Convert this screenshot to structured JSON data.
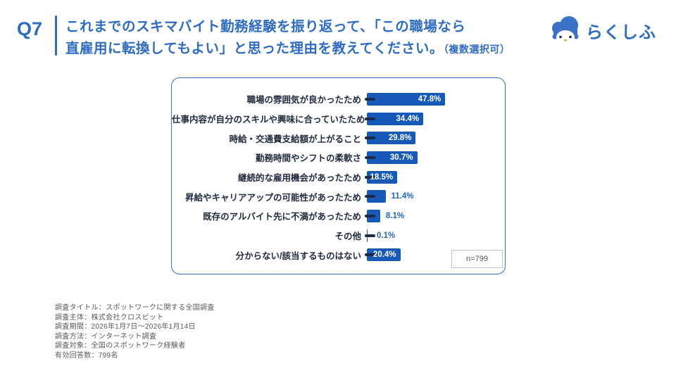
{
  "header": {
    "q_label": "Q7",
    "title_line1": "これまでのスキマバイト勤務経験を振り返って、「この職場なら",
    "title_line2": "直雇用に転換してもよい」と思った理由を教えてください。",
    "title_note": "（複数選択可）",
    "accent_color": "#2d6bc4"
  },
  "logo": {
    "text": "らくしふ",
    "color": "#2d6bc4"
  },
  "chart_data": {
    "type": "bar",
    "orientation": "horizontal",
    "unit": "%",
    "categories": [
      "職場の雰囲気が良かったため",
      "仕事内容が自分のスキルや興味に合っていたため",
      "時給・交通費支給額が上がること",
      "勤務時間やシフトの柔軟さ",
      "継続的な雇用機会があったため",
      "昇給やキャリアアップの可能性があったため",
      "既存のアルバイト先に不満があったため",
      "その他",
      "分からない/該当するものはない"
    ],
    "values": [
      47.8,
      34.4,
      29.8,
      30.7,
      18.5,
      11.4,
      8.1,
      0.1,
      20.4
    ],
    "xlim": [
      0,
      52
    ],
    "grid": false,
    "legend": false,
    "bar_color": "#1759b8",
    "tick_color": "#1c2947",
    "inside_label_color": "#ffffff",
    "outside_label_color": "#2064c6",
    "n_label": "n=799"
  },
  "footer": {
    "lines": [
      "調査タイトル：スポットワークに関する全国調査",
      "調査主体：株式会社クロスビット",
      "調査期間：2026年1月7日～2026年1月14日",
      "調査方法：インターネット調査",
      "調査対象：全国のスポットワーク経験者",
      "有効回答数：799名"
    ],
    "color": "#595959"
  }
}
